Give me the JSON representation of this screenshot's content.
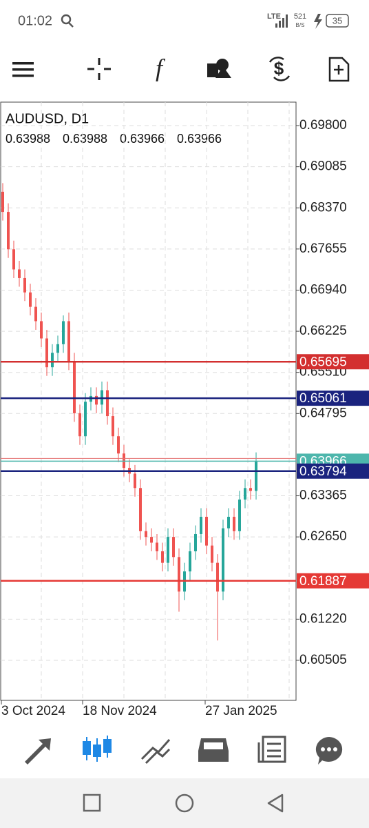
{
  "status_bar": {
    "time": "01:02",
    "network": "LTE",
    "speed": "521",
    "speed_unit": "B/S",
    "battery": "35"
  },
  "chart_data": {
    "type": "candlestick",
    "title": "AUDUSD, D1",
    "quote": [
      0.63988,
      0.63988,
      0.63966,
      0.63966
    ],
    "open": [
      0.6865,
      0.683,
      0.6765,
      0.673,
      0.6715,
      0.669,
      0.6665,
      0.664,
      0.661,
      0.656,
      0.6585,
      0.66,
      0.664,
      0.657,
      0.648,
      0.644,
      0.65,
      0.651,
      0.6495,
      0.652,
      0.6475,
      0.644,
      0.641,
      0.6385,
      0.6375,
      0.635,
      0.6275,
      0.6265,
      0.6255,
      0.624,
      0.622,
      0.6265,
      0.623,
      0.617,
      0.6205,
      0.624,
      0.627,
      0.63,
      0.625,
      0.622,
      0.617,
      0.628,
      0.63,
      0.6275,
      0.633,
      0.635,
      0.6345
    ],
    "high": [
      0.688,
      0.6845,
      0.678,
      0.6745,
      0.673,
      0.6705,
      0.668,
      0.6655,
      0.6625,
      0.66,
      0.6615,
      0.665,
      0.6655,
      0.6585,
      0.6495,
      0.6515,
      0.6525,
      0.6525,
      0.6535,
      0.6535,
      0.649,
      0.6455,
      0.6425,
      0.64,
      0.639,
      0.6365,
      0.629,
      0.628,
      0.627,
      0.6255,
      0.628,
      0.628,
      0.6245,
      0.622,
      0.6255,
      0.6285,
      0.6315,
      0.6315,
      0.6265,
      0.6235,
      0.6295,
      0.6315,
      0.6315,
      0.6345,
      0.6365,
      0.6365,
      0.6412
    ],
    "low": [
      0.6815,
      0.675,
      0.6715,
      0.67,
      0.6675,
      0.665,
      0.6625,
      0.6595,
      0.6545,
      0.6545,
      0.657,
      0.6585,
      0.6555,
      0.6465,
      0.6425,
      0.6425,
      0.6485,
      0.648,
      0.648,
      0.646,
      0.6425,
      0.6395,
      0.637,
      0.636,
      0.6335,
      0.626,
      0.625,
      0.624,
      0.6225,
      0.6205,
      0.6205,
      0.6215,
      0.6135,
      0.6155,
      0.619,
      0.6225,
      0.6255,
      0.6235,
      0.6205,
      0.6085,
      0.6155,
      0.6265,
      0.626,
      0.626,
      0.6315,
      0.633,
      0.633
    ],
    "close": [
      0.683,
      0.6765,
      0.673,
      0.6715,
      0.669,
      0.6665,
      0.664,
      0.661,
      0.656,
      0.6585,
      0.66,
      0.664,
      0.657,
      0.648,
      0.644,
      0.65,
      0.651,
      0.6495,
      0.652,
      0.6475,
      0.644,
      0.641,
      0.6385,
      0.6375,
      0.635,
      0.6275,
      0.6265,
      0.6255,
      0.624,
      0.622,
      0.6265,
      0.623,
      0.617,
      0.6205,
      0.624,
      0.627,
      0.63,
      0.625,
      0.622,
      0.617,
      0.628,
      0.63,
      0.6275,
      0.633,
      0.635,
      0.6345,
      0.6397
    ],
    "up_color": "#26a69a",
    "down_color": "#ef5350",
    "ylim": [
      0.59809,
      0.70208
    ],
    "yticks": [
      {
        "value": 0.698,
        "label": "0.69800"
      },
      0.69085,
      {
        "value": 0.6837,
        "label": "0.68370"
      },
      0.67655,
      {
        "value": 0.6694,
        "label": "0.66940"
      },
      0.66225,
      {
        "value": 0.6551,
        "label": "0.65510"
      },
      0.64795,
      0.63365,
      {
        "value": 0.6265,
        "label": "0.62650"
      },
      {
        "value": 0.6122,
        "label": "0.61220"
      },
      0.60505
    ],
    "x_labels": [
      "3 Oct 2024",
      "18 Nov 2024",
      "27 Jan 2025"
    ],
    "grid": true,
    "levels": [
      {
        "value": 0.65695,
        "color": "#d32f2f"
      },
      {
        "value": 0.65061,
        "color": "#1a237e"
      },
      {
        "value": 0.63794,
        "color": "#1a237e"
      },
      {
        "value": 0.61887,
        "color": "#e53935"
      }
    ],
    "current": {
      "value": 0.63966,
      "color": "#4db6ac"
    }
  }
}
